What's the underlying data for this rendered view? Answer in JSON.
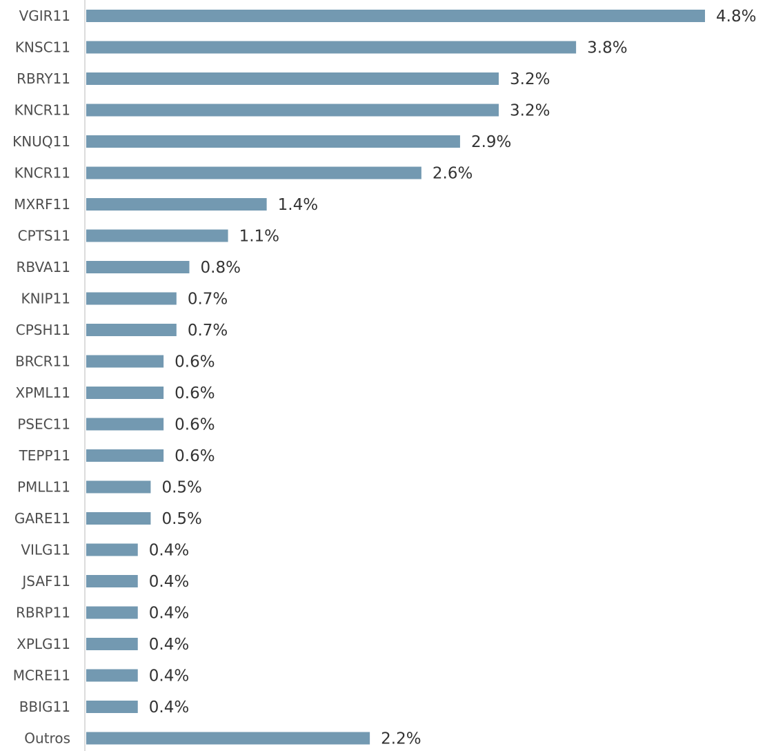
{
  "chart_data": {
    "type": "bar",
    "orientation": "horizontal",
    "categories": [
      "VGIR11",
      "KNSC11",
      "RBRY11",
      "KNCR11",
      "KNUQ11",
      "KNCR11",
      "MXRF11",
      "CPTS11",
      "RBVA11",
      "KNIP11",
      "CPSH11",
      "BRCR11",
      "XPML11",
      "PSEC11",
      "TEPP11",
      "PMLL11",
      "GARE11",
      "VILG11",
      "JSAF11",
      "RBRP11",
      "XPLG11",
      "MCRE11",
      "BBIG11",
      "Outros"
    ],
    "values": [
      4.8,
      3.8,
      3.2,
      3.2,
      2.9,
      2.6,
      1.4,
      1.1,
      0.8,
      0.7,
      0.7,
      0.6,
      0.6,
      0.6,
      0.6,
      0.5,
      0.5,
      0.4,
      0.4,
      0.4,
      0.4,
      0.4,
      0.4,
      2.2
    ],
    "value_labels": [
      "4.8%",
      "3.8%",
      "3.2%",
      "3.2%",
      "2.9%",
      "2.6%",
      "1.4%",
      "1.1%",
      "0.8%",
      "0.7%",
      "0.7%",
      "0.6%",
      "0.6%",
      "0.6%",
      "0.6%",
      "0.5%",
      "0.5%",
      "0.4%",
      "0.4%",
      "0.4%",
      "0.4%",
      "0.4%",
      "0.4%",
      "2.2%"
    ],
    "xlim": [
      0,
      4.8
    ],
    "grid": false,
    "legend": "none",
    "bar_color": "#7399b1",
    "axis_color": "#d0d0d0"
  }
}
